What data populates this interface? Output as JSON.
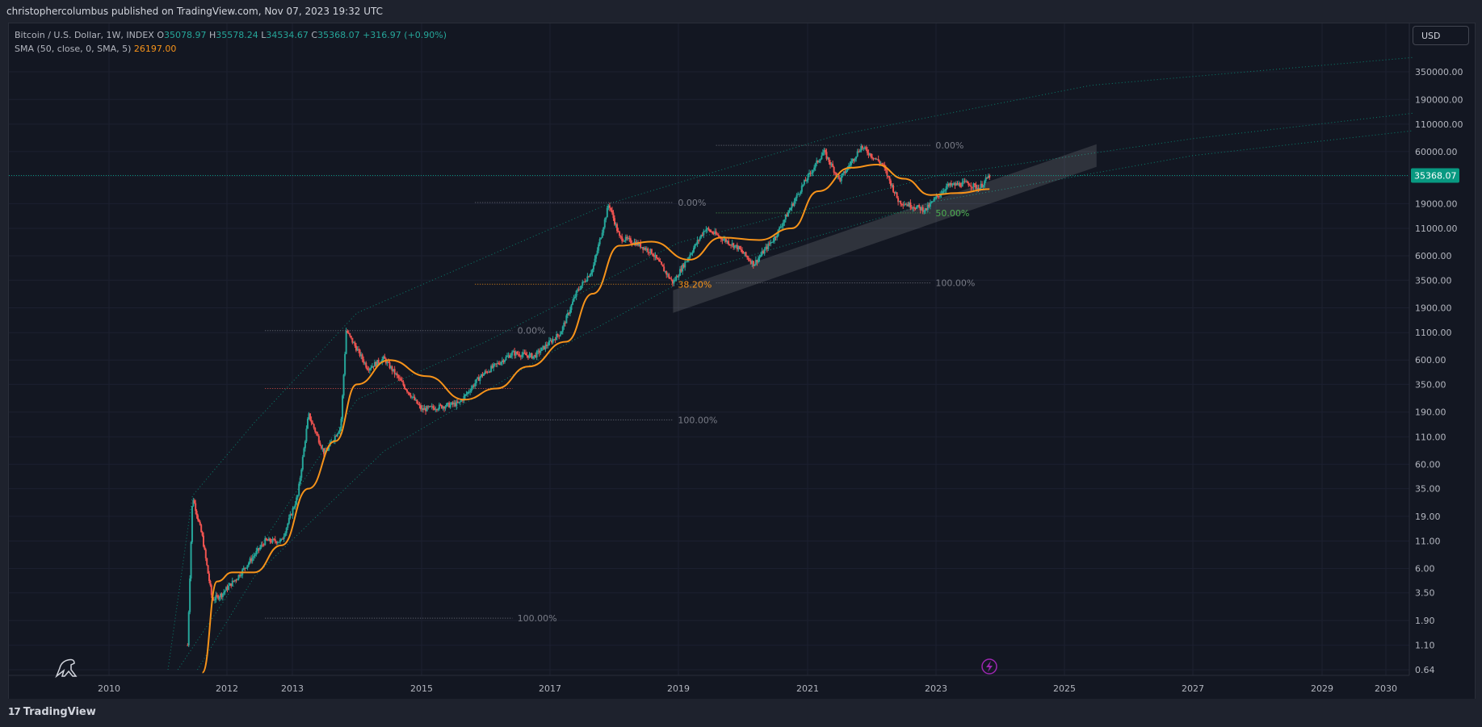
{
  "header": {
    "published": "christophercolumbus published on TradingView.com, Nov 07, 2023 19:32 UTC"
  },
  "legend": {
    "symbol": "Bitcoin / U.S. Dollar, 1W, INDEX",
    "o_label": "O",
    "o_value": "35078.97",
    "h_label": "H",
    "h_value": "35578.24",
    "l_label": "L",
    "l_value": "34534.67",
    "c_label": "C",
    "c_value": "35368.07",
    "change": "+316.97 (+0.90%)",
    "sma_label": "SMA (50, close, 0, SMA, 5)",
    "sma_value": "26197.00"
  },
  "currency_button": "USD",
  "footer": {
    "logo_mark": "17",
    "logo_text": "TradingView"
  },
  "colors": {
    "background": "#131722",
    "up": "#26a69a",
    "down": "#ef5350",
    "sma": "#f7931a",
    "accent": "#089981",
    "fib_green": "#4caf50",
    "fib_orange": "#f7931a",
    "fib_red": "#ef5350",
    "lightning": "#9c27b0"
  },
  "icons": [
    "dinosaur-icon",
    "lightning-icon"
  ],
  "chart_data": {
    "type": "candlestick",
    "timeframe": "1W",
    "y_scale": "log",
    "y_ticks": [
      "350000.00",
      "190000.00",
      "110000.00",
      "60000.00",
      "35000.00",
      "19000.00",
      "11000.00",
      "6000.00",
      "3500.00",
      "1900.00",
      "1100.00",
      "600.00",
      "350.00",
      "190.00",
      "110.00",
      "60.00",
      "35.00",
      "19.00",
      "11.00",
      "6.00",
      "3.50",
      "1.90",
      "1.10",
      "0.64"
    ],
    "x_ticks": [
      "2010",
      "2012",
      "2013",
      "2015",
      "2017",
      "2019",
      "2021",
      "2023",
      "2025",
      "2027",
      "2029",
      "2030"
    ],
    "last_price": 35368.07,
    "last_price_label": "35368.07",
    "price_path": [
      [
        "2011-05",
        1.1
      ],
      [
        "2011-06",
        30
      ],
      [
        "2011-08",
        12
      ],
      [
        "2011-10",
        3
      ],
      [
        "2011-12",
        3.4
      ],
      [
        "2012-03",
        5
      ],
      [
        "2012-08",
        11
      ],
      [
        "2012-11",
        11
      ],
      [
        "2013-02",
        30
      ],
      [
        "2013-04",
        180
      ],
      [
        "2013-07",
        75
      ],
      [
        "2013-10",
        140
      ],
      [
        "2013-11",
        1150
      ],
      [
        "2014-03",
        500
      ],
      [
        "2014-06",
        620
      ],
      [
        "2015-01",
        200
      ],
      [
        "2015-08",
        230
      ],
      [
        "2015-12",
        420
      ],
      [
        "2016-06",
        700
      ],
      [
        "2016-10",
        650
      ],
      [
        "2017-03",
        1100
      ],
      [
        "2017-06",
        2700
      ],
      [
        "2017-09",
        4500
      ],
      [
        "2017-12",
        19000
      ],
      [
        "2018-02",
        9000
      ],
      [
        "2018-05",
        8000
      ],
      [
        "2018-08",
        6500
      ],
      [
        "2018-12",
        3300
      ],
      [
        "2019-06",
        11000
      ],
      [
        "2019-12",
        7200
      ],
      [
        "2020-03",
        5000
      ],
      [
        "2020-07",
        9200
      ],
      [
        "2020-12",
        28000
      ],
      [
        "2021-04",
        60000
      ],
      [
        "2021-07",
        32000
      ],
      [
        "2021-11",
        67000
      ],
      [
        "2022-03",
        45000
      ],
      [
        "2022-06",
        20000
      ],
      [
        "2022-11",
        16500
      ],
      [
        "2023-03",
        28000
      ],
      [
        "2023-07",
        30000
      ],
      [
        "2023-09",
        26500
      ],
      [
        "2023-11",
        35368
      ]
    ],
    "sma_path": [
      [
        "2011-08",
        0.6
      ],
      [
        "2011-11",
        4.5
      ],
      [
        "2012-02",
        5.5
      ],
      [
        "2012-06",
        5.5
      ],
      [
        "2012-11",
        10
      ],
      [
        "2013-04",
        35
      ],
      [
        "2013-09",
        100
      ],
      [
        "2014-01",
        350
      ],
      [
        "2014-07",
        600
      ],
      [
        "2015-02",
        420
      ],
      [
        "2015-09",
        250
      ],
      [
        "2016-03",
        320
      ],
      [
        "2016-09",
        520
      ],
      [
        "2017-04",
        900
      ],
      [
        "2017-09",
        2600
      ],
      [
        "2018-02",
        7500
      ],
      [
        "2018-08",
        8200
      ],
      [
        "2019-03",
        5500
      ],
      [
        "2019-09",
        9000
      ],
      [
        "2020-04",
        8500
      ],
      [
        "2020-10",
        11000
      ],
      [
        "2021-03",
        25000
      ],
      [
        "2021-09",
        42000
      ],
      [
        "2022-02",
        45000
      ],
      [
        "2022-07",
        33000
      ],
      [
        "2022-12",
        23000
      ],
      [
        "2023-05",
        24000
      ],
      [
        "2023-11",
        26197
      ]
    ],
    "fib_levels": [
      {
        "date_start": "2012-08",
        "date_end": "2016-06",
        "value": 1150,
        "label": "0.00%",
        "color": "#787b86"
      },
      {
        "date_start": "2012-08",
        "date_end": "2016-06",
        "value": 2,
        "label": "100.00%",
        "color": "#787b86"
      },
      {
        "date_start": "2012-08",
        "date_end": "2016-06",
        "value": 320,
        "label": "",
        "color": "#ef5350"
      },
      {
        "date_start": "2015-11",
        "date_end": "2018-12",
        "value": 19500,
        "label": "0.00%",
        "color": "#787b86"
      },
      {
        "date_start": "2015-11",
        "date_end": "2018-12",
        "value": 160,
        "label": "100.00%",
        "color": "#787b86"
      },
      {
        "date_start": "2015-11",
        "date_end": "2018-12",
        "value": 3200,
        "label": "38.20%",
        "color": "#f7931a"
      },
      {
        "date_start": "2019-08",
        "date_end": "2022-12",
        "value": 69000,
        "label": "0.00%",
        "color": "#787b86"
      },
      {
        "date_start": "2019-08",
        "date_end": "2022-12",
        "value": 3300,
        "label": "100.00%",
        "color": "#787b86"
      },
      {
        "date_start": "2019-08",
        "date_end": "2022-12",
        "value": 15500,
        "label": "50.00%",
        "color": "#4caf50"
      }
    ],
    "curves": [
      {
        "name": "upper",
        "points": [
          [
            "2011-01",
            0.64
          ],
          [
            "2011-06",
            30
          ],
          [
            "2012-06",
            150
          ],
          [
            "2014-01",
            1700
          ],
          [
            "2017-12",
            19000
          ],
          [
            "2021-06",
            85000
          ],
          [
            "2025-06",
            260000
          ],
          [
            "2030-06",
            480000
          ]
        ]
      },
      {
        "name": "middle",
        "points": [
          [
            "2011-03",
            0.64
          ],
          [
            "2012-06",
            8
          ],
          [
            "2014-01",
            250
          ],
          [
            "2016-01",
            900
          ],
          [
            "2019-01",
            8000
          ],
          [
            "2023-01",
            35000
          ],
          [
            "2027-01",
            80000
          ],
          [
            "2030-06",
            140000
          ]
        ]
      },
      {
        "name": "lower",
        "points": [
          [
            "2011-07",
            0.64
          ],
          [
            "2012-06",
            5
          ],
          [
            "2014-06",
            80
          ],
          [
            "2017-01",
            700
          ],
          [
            "2019-06",
            4500
          ],
          [
            "2023-01",
            20000
          ],
          [
            "2027-01",
            55000
          ],
          [
            "2030-06",
            95000
          ]
        ]
      }
    ],
    "channel": [
      [
        "2018-12",
        2800
      ],
      [
        "2025-07",
        55000
      ]
    ]
  }
}
